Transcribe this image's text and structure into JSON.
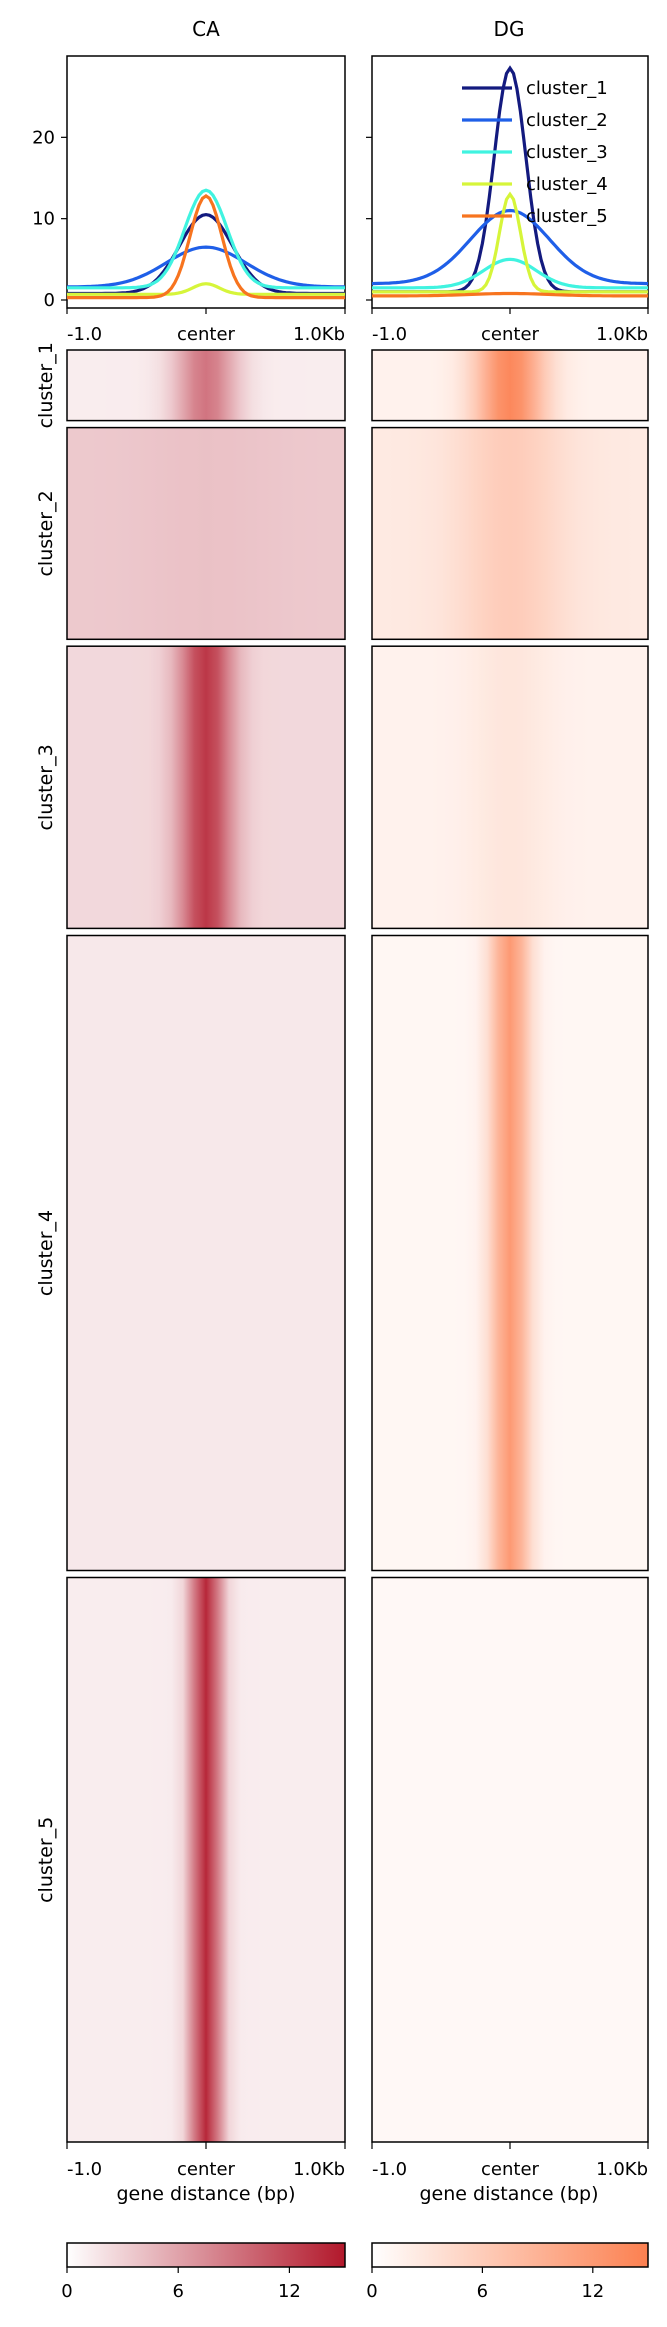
{
  "chart_data": {
    "type": "heatmap",
    "columns": [
      {
        "name": "CA",
        "color_max": "#b2182b"
      },
      {
        "name": "DG",
        "color_max": "#fc8050"
      }
    ],
    "profile": {
      "ylim": [
        0,
        30
      ],
      "yticks": [
        0,
        10,
        20
      ],
      "x_ticks": [
        "-1.0",
        "center",
        "1.0Kb"
      ],
      "legend_position": "top-right",
      "series": [
        {
          "name": "cluster_1",
          "color": "#131a7f",
          "CA": {
            "base": 0.8,
            "peak": 10.5,
            "width": 0.2
          },
          "DG": {
            "base": 1.0,
            "peak": 28.5,
            "width": 0.12
          }
        },
        {
          "name": "cluster_2",
          "color": "#1f5fe8",
          "CA": {
            "base": 1.6,
            "peak": 6.5,
            "width": 0.3
          },
          "DG": {
            "base": 2.0,
            "peak": 11.0,
            "width": 0.3
          }
        },
        {
          "name": "cluster_3",
          "color": "#40f3e0",
          "CA": {
            "base": 1.5,
            "peak": 13.5,
            "width": 0.16
          },
          "DG": {
            "base": 1.5,
            "peak": 5.0,
            "width": 0.2
          }
        },
        {
          "name": "cluster_4",
          "color": "#d6f53a",
          "CA": {
            "base": 0.7,
            "peak": 2.0,
            "width": 0.1
          },
          "DG": {
            "base": 1.0,
            "peak": 13.0,
            "width": 0.08
          }
        },
        {
          "name": "cluster_5",
          "color": "#f7741f",
          "CA": {
            "base": 0.3,
            "peak": 12.8,
            "width": 0.12
          },
          "DG": {
            "base": 0.5,
            "peak": 0.8,
            "width": 0.3
          }
        }
      ]
    },
    "heatmap": {
      "clusters": [
        {
          "name": "cluster_1",
          "rows": 1,
          "CA": {
            "peak": 9,
            "bg": 1.2,
            "width": 0.16
          },
          "DG": {
            "peak": 14,
            "bg": 1.5,
            "width": 0.18
          }
        },
        {
          "name": "cluster_2",
          "rows": 3,
          "CA": {
            "peak": 4,
            "bg": 3.5,
            "width": 0.35
          },
          "DG": {
            "peak": 6,
            "bg": 2.5,
            "width": 0.28
          }
        },
        {
          "name": "cluster_3",
          "rows": 4,
          "CA": {
            "peak": 13,
            "bg": 2.5,
            "width": 0.14
          },
          "DG": {
            "peak": 3,
            "bg": 1.5,
            "width": 0.22
          }
        },
        {
          "name": "cluster_4",
          "rows": 9,
          "CA": {
            "peak": 1.5,
            "bg": 1.5,
            "width": 0.2
          },
          "DG": {
            "peak": 12,
            "bg": 1,
            "width": 0.1
          }
        },
        {
          "name": "cluster_5",
          "rows": 8,
          "CA": {
            "peak": 14,
            "bg": 1.2,
            "width": 0.08
          },
          "DG": {
            "peak": 0.8,
            "bg": 0.8,
            "width": 0.3
          }
        }
      ],
      "x_ticks": [
        "-1.0",
        "center",
        "1.0Kb"
      ],
      "xlabel": "gene distance (bp)"
    },
    "colorbar": {
      "range": [
        0,
        15
      ],
      "ticks": [
        0,
        6,
        12
      ]
    }
  }
}
